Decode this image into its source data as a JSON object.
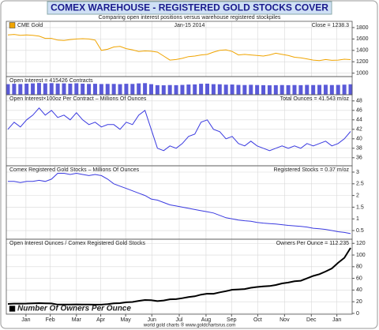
{
  "title": "COMEX WAREHOUSE - REGISTERED GOLD STOCKS COVER",
  "subtitle": "Comparing open interest positions versus warehouse registered stockpiles",
  "source": "world gold charts ® www.goldchartsrus.com",
  "chart_data": [
    {
      "type": "line",
      "date_label": "Jan-15 2014",
      "stat_label": "Close = 1238.3",
      "legend": "top-left",
      "grid": true,
      "xlim": [
        0,
        55
      ],
      "ylim": [
        940,
        1910
      ],
      "yticks": [
        1000,
        1200,
        1400,
        1600,
        1800
      ],
      "series": [
        {
          "name": "CME Gold",
          "color": "#f0a400",
          "values": [
            1670,
            1680,
            1665,
            1670,
            1665,
            1650,
            1610,
            1610,
            1580,
            1575,
            1590,
            1600,
            1605,
            1600,
            1580,
            1400,
            1420,
            1460,
            1470,
            1430,
            1410,
            1380,
            1390,
            1385,
            1370,
            1300,
            1230,
            1240,
            1260,
            1290,
            1300,
            1320,
            1330,
            1370,
            1400,
            1410,
            1380,
            1320,
            1330,
            1320,
            1310,
            1300,
            1320,
            1350,
            1330,
            1310,
            1280,
            1270,
            1250,
            1230,
            1220,
            1240,
            1225,
            1230,
            1245,
            1238.3
          ]
        }
      ]
    },
    {
      "type": "bar",
      "title": "Open Interest = 415426 Contracts",
      "xlim": [
        0,
        55
      ],
      "ylim": [
        0,
        470000
      ],
      "series": [
        {
          "color": "#5a5ad8",
          "values": [
            420000,
            435000,
            425000,
            440000,
            450000,
            465000,
            450000,
            460000,
            445000,
            450000,
            440000,
            455000,
            440000,
            430000,
            435000,
            425000,
            430000,
            430000,
            420000,
            435000,
            430000,
            450000,
            460000,
            420000,
            380000,
            375000,
            385000,
            380000,
            390000,
            405000,
            410000,
            435000,
            440000,
            420000,
            415000,
            400000,
            405000,
            390000,
            385000,
            395000,
            385000,
            380000,
            375000,
            380000,
            385000,
            380000,
            385000,
            380000,
            390000,
            385000,
            390000,
            395000,
            385000,
            390000,
            400000,
            415426
          ]
        }
      ]
    },
    {
      "type": "line",
      "title": "Open Interest×100oz Per Contract – Millions Of Ounces",
      "stat_label": "Total Ounces = 41.543 m/oz",
      "grid": true,
      "xlim": [
        0,
        55
      ],
      "ylim": [
        34.3,
        49.3
      ],
      "yticks": [
        36,
        38,
        40,
        42,
        44,
        46,
        48
      ],
      "series": [
        {
          "color": "#3a3ae0",
          "values": [
            42,
            43.5,
            42.5,
            44,
            45,
            46.5,
            45,
            46,
            44.5,
            45,
            44,
            45.5,
            44,
            43,
            43.5,
            42.5,
            43,
            43,
            42,
            43.5,
            43,
            45,
            46,
            42,
            38,
            37.5,
            38.5,
            38,
            39,
            40.5,
            41,
            43.5,
            44,
            42,
            41.5,
            40,
            40.5,
            39,
            38.5,
            39.5,
            38.5,
            38,
            37.5,
            38,
            38.5,
            38,
            38.5,
            38,
            39,
            38.5,
            39,
            39.5,
            38.5,
            39,
            40,
            41.543
          ]
        }
      ]
    },
    {
      "type": "line",
      "title": "Comex Registered Gold Stocks – Millions Of Ounces",
      "stat_label": "Registered Stocks = 0.37 m/oz",
      "grid": true,
      "xlim": [
        0,
        55
      ],
      "ylim": [
        0.13,
        3.27
      ],
      "yticks": [
        0.5,
        1,
        1.5,
        2,
        2.5,
        3
      ],
      "series": [
        {
          "color": "#3a3ae0",
          "values": [
            2.6,
            2.6,
            2.55,
            2.6,
            2.6,
            2.65,
            2.6,
            2.7,
            2.95,
            2.95,
            2.9,
            2.95,
            2.9,
            2.85,
            2.9,
            2.85,
            2.7,
            2.5,
            2.4,
            2.3,
            2.2,
            2.1,
            2.0,
            1.85,
            1.8,
            1.7,
            1.6,
            1.55,
            1.5,
            1.45,
            1.4,
            1.35,
            1.3,
            1.25,
            1.15,
            1.05,
            1.0,
            0.95,
            0.92,
            0.9,
            0.85,
            0.82,
            0.8,
            0.78,
            0.75,
            0.72,
            0.7,
            0.68,
            0.65,
            0.6,
            0.58,
            0.55,
            0.5,
            0.45,
            0.42,
            0.37
          ]
        }
      ]
    },
    {
      "type": "line",
      "title": "Open Interest Ounces / Comex Registered Gold Stocks",
      "stat_label": "Owners Per Ounce = 112.235",
      "legend": "bottom-left",
      "grid": true,
      "xlim": [
        0,
        55
      ],
      "ylim": [
        -1.4,
        127.1
      ],
      "yticks": [
        0,
        20,
        40,
        60,
        80,
        100,
        120
      ],
      "xticks": [
        {
          "value": 2.9,
          "label": "Jan"
        },
        {
          "value": 6.8,
          "label": "Feb"
        },
        {
          "value": 11,
          "label": "Mar"
        },
        {
          "value": 14.9,
          "label": "Apr"
        },
        {
          "value": 18.9,
          "label": "May"
        },
        {
          "value": 23.1,
          "label": "Jun"
        },
        {
          "value": 27.5,
          "label": "Jul"
        },
        {
          "value": 31.8,
          "label": "Aug"
        },
        {
          "value": 35.9,
          "label": "Sep"
        },
        {
          "value": 40.1,
          "label": "Oct"
        },
        {
          "value": 44.4,
          "label": "Nov"
        },
        {
          "value": 48.7,
          "label": "Dec"
        },
        {
          "value": 52.8,
          "label": "Jan"
        }
      ],
      "series": [
        {
          "name": "Number Of Owners Per Ounce",
          "color": "#000000",
          "values": [
            16.2,
            16.7,
            16.7,
            16.9,
            17.3,
            17.5,
            17.3,
            17.0,
            15.1,
            15.3,
            15.2,
            15.4,
            15.2,
            15.1,
            15.0,
            14.9,
            15.9,
            17.2,
            17.5,
            19.0,
            19.5,
            21.4,
            23.0,
            22.7,
            21.1,
            22.1,
            24.1,
            24.5,
            26.0,
            27.9,
            29.3,
            32.2,
            33.8,
            33.6,
            36.1,
            38.1,
            40.5,
            41.1,
            41.8,
            43.9,
            45.3,
            46.3,
            46.9,
            48.7,
            51.3,
            52.8,
            55.0,
            55.9,
            60.0,
            64.2,
            67.2,
            71.8,
            77.0,
            86.7,
            95.2,
            112.235
          ]
        }
      ]
    }
  ]
}
